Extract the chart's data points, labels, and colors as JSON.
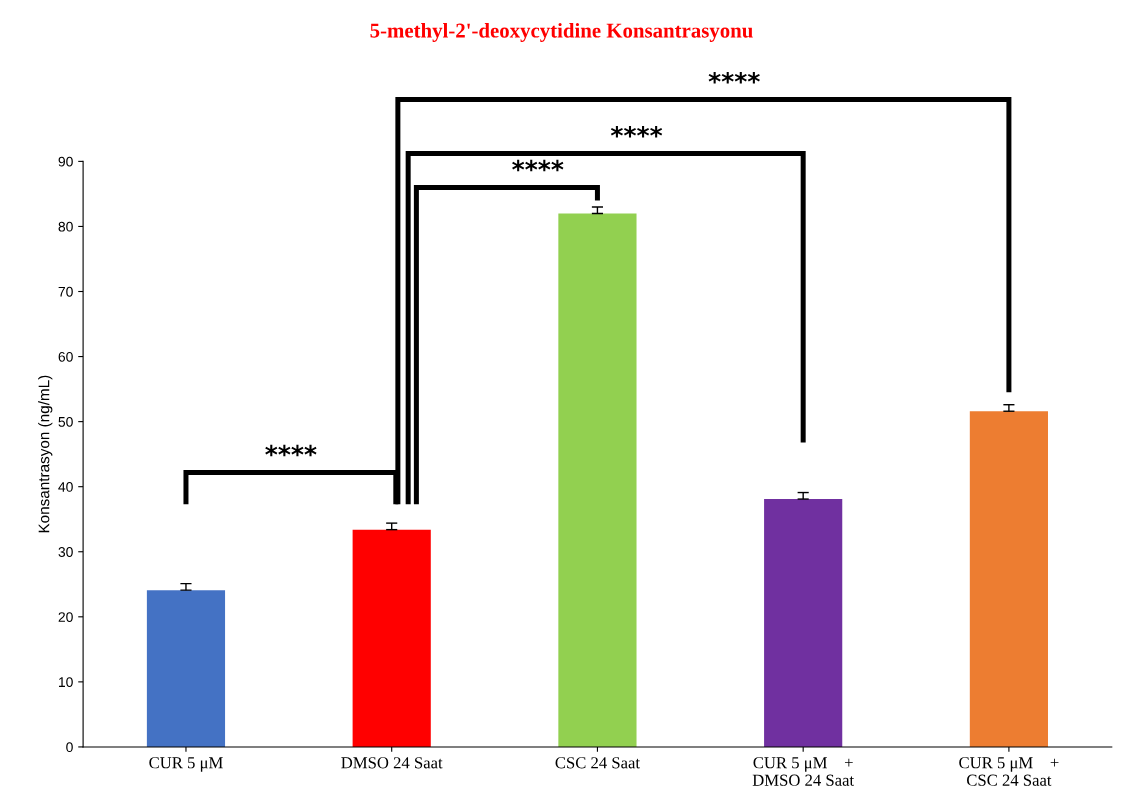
{
  "chart_data": {
    "type": "bar",
    "title": "5-methyl-2'-deoxycytidine Konsantrasyonu",
    "ylabel": "Konsantrasyon (ng/mL)",
    "categories": [
      "CUR 5 μM",
      "DMSO 24 Saat",
      "CSC 24 Saat",
      "CUR 5 μM    +\nDMSO 24 Saat",
      "CUR 5 μM    +\nCSC 24 Saat"
    ],
    "values": [
      24.1,
      33.4,
      82.0,
      38.1,
      51.6
    ],
    "colors": [
      "#4472c4",
      "#ff0000",
      "#92d050",
      "#7030a0",
      "#ed7d31"
    ],
    "errors": [
      [
        24.1,
        25.1
      ],
      [
        33.4,
        34.4
      ],
      [
        82.0,
        83.0
      ],
      [
        38.1,
        39.1
      ],
      [
        51.6,
        52.6
      ]
    ],
    "ylim": [
      0,
      90
    ],
    "yticks": [
      0,
      10,
      20,
      30,
      40,
      50,
      60,
      70,
      80,
      90
    ],
    "grid": false,
    "legend": false,
    "annotations": [
      "****",
      "****",
      "****",
      "****"
    ]
  }
}
